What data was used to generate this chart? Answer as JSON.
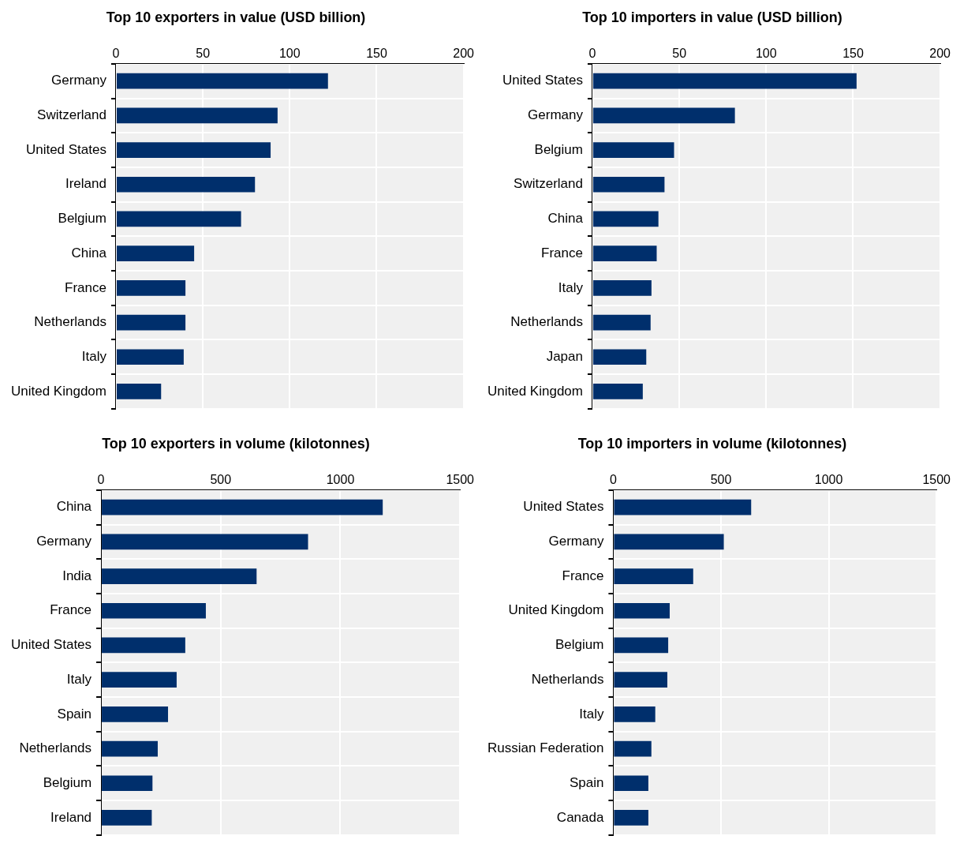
{
  "chart_data": [
    {
      "type": "bar",
      "orientation": "horizontal",
      "title": "Top 10 exporters in value (USD billion)",
      "categories": [
        "Germany",
        "Switzerland",
        "United States",
        "Ireland",
        "Belgium",
        "China",
        "France",
        "Netherlands",
        "Italy",
        "United Kingdom"
      ],
      "values": [
        122,
        93,
        89,
        80,
        72,
        45,
        40,
        40,
        39,
        26
      ],
      "color": "#002f6c",
      "xlim": [
        0,
        200
      ],
      "xticks": [
        0,
        50,
        100,
        150,
        200
      ],
      "grid": true
    },
    {
      "type": "bar",
      "orientation": "horizontal",
      "title": "Top 10 importers in value (USD billion)",
      "categories": [
        "United States",
        "Germany",
        "Belgium",
        "Switzerland",
        "China",
        "France",
        "Italy",
        "Netherlands",
        "Japan",
        "United Kingdom"
      ],
      "values": [
        152,
        82,
        47,
        41.5,
        38,
        37,
        34,
        33.5,
        31,
        29
      ],
      "color": "#002f6c",
      "xlim": [
        0,
        200
      ],
      "xticks": [
        0,
        50,
        100,
        150,
        200
      ],
      "grid": true
    },
    {
      "type": "bar",
      "orientation": "horizontal",
      "title": "Top 10 exporters in volume (kilotonnes)",
      "categories": [
        "China",
        "Germany",
        "India",
        "France",
        "United States",
        "Italy",
        "Spain",
        "Netherlands",
        "Belgium",
        "Ireland"
      ],
      "values": [
        1177,
        865,
        650,
        438,
        352,
        316,
        280,
        237,
        215,
        212
      ],
      "color": "#002f6c",
      "xlim": [
        0,
        1500
      ],
      "xticks": [
        0,
        500,
        1000,
        1500
      ],
      "grid": true
    },
    {
      "type": "bar",
      "orientation": "horizontal",
      "title": "Top 10 importers in volume (kilotonnes)",
      "categories": [
        "United States",
        "Germany",
        "France",
        "United Kingdom",
        "Belgium",
        "Netherlands",
        "Italy",
        "Russian Federation",
        "Spain",
        "Canada"
      ],
      "values": [
        640,
        513,
        371,
        262,
        255,
        251,
        195,
        177,
        163,
        163
      ],
      "color": "#002f6c",
      "xlim": [
        0,
        1500
      ],
      "xticks": [
        0,
        500,
        1000,
        1500
      ],
      "grid": true
    }
  ]
}
